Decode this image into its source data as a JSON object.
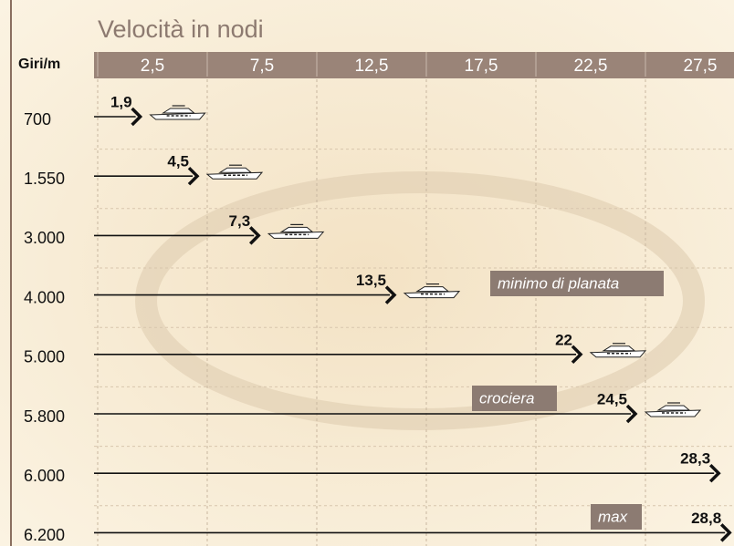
{
  "chart_data": {
    "type": "bar",
    "orientation": "horizontal",
    "title": "Velocità in nodi",
    "y_label": "Giri/m",
    "categories": [
      "700",
      "1.550",
      "3.000",
      "4.000",
      "5.000",
      "5.800",
      "6.000",
      "6.200"
    ],
    "values": [
      1.9,
      4.5,
      7.3,
      13.5,
      22,
      24.5,
      28.3,
      28.8
    ],
    "value_labels": [
      "1,9",
      "4,5",
      "7,3",
      "13,5",
      "22",
      "24,5",
      "28,3",
      "28,8"
    ],
    "xlim": [
      0,
      29
    ],
    "xticks": [
      {
        "value": 2.5,
        "label": "2,5"
      },
      {
        "value": 7.5,
        "label": "7,5"
      },
      {
        "value": 12.5,
        "label": "12,5"
      },
      {
        "value": 17.5,
        "label": "17,5"
      },
      {
        "value": 22.5,
        "label": "22,5"
      },
      {
        "value": 27.5,
        "label": "27,5"
      }
    ],
    "color": "#111111",
    "annotations": [
      {
        "text": "minimo di planata"
      },
      {
        "text": "crociera"
      },
      {
        "text": "max"
      }
    ]
  }
}
